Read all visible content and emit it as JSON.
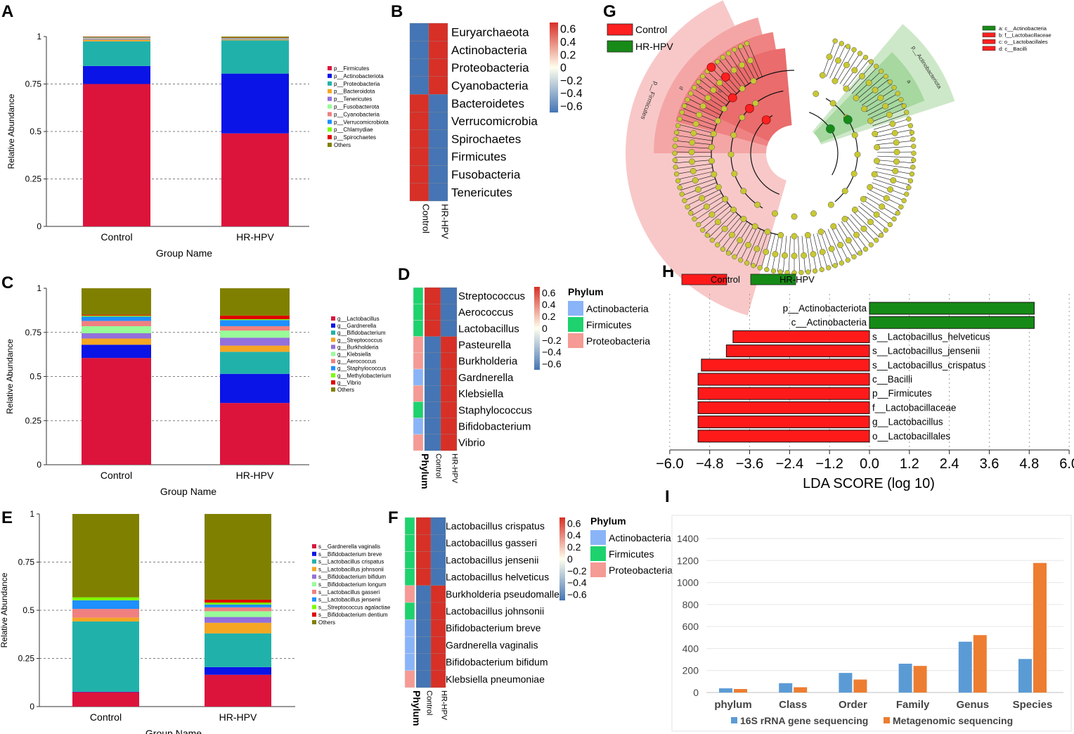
{
  "panels": {
    "A": {
      "label": "A",
      "chart_data": {
        "type": "bar",
        "stacked": true,
        "categories": [
          "Control",
          "HR-HPV"
        ],
        "xlabel": "Group Name",
        "ylabel": "Relative Abundance",
        "ylim": [
          0,
          1
        ],
        "yticks": [
          "0",
          "0.25",
          "0.5",
          "0.75",
          "1"
        ],
        "series": [
          {
            "name": "p__Firmicutes",
            "color": "#dc143c",
            "values": [
              0.75,
              0.49
            ]
          },
          {
            "name": "p__Actinobacteriota",
            "color": "#0a14e6",
            "values": [
              0.095,
              0.315
            ]
          },
          {
            "name": "p__Proteobacteria",
            "color": "#20b2aa",
            "values": [
              0.13,
              0.175
            ]
          },
          {
            "name": "p__Bacteroidota",
            "color": "#f5a623",
            "values": [
              0.008,
              0.004
            ]
          },
          {
            "name": "p__Tenericutes",
            "color": "#9370db",
            "values": [
              0.004,
              0.003
            ]
          },
          {
            "name": "p__Fusobacterota",
            "color": "#98fb98",
            "values": [
              0.003,
              0.002
            ]
          },
          {
            "name": "p__Cyanobacteria",
            "color": "#f08080",
            "values": [
              0.003,
              0.002
            ]
          },
          {
            "name": "p__Verrucomicrobiota",
            "color": "#1e90ff",
            "values": [
              0.002,
              0.002
            ]
          },
          {
            "name": "p__Chlamydiae",
            "color": "#7cfc00",
            "values": [
              0.002,
              0.001
            ]
          },
          {
            "name": "p__Spirochaetes",
            "color": "#e00000",
            "values": [
              0.001,
              0.001
            ]
          },
          {
            "name": "Others",
            "color": "#808000",
            "values": [
              0.002,
              0.005
            ]
          }
        ]
      }
    },
    "B": {
      "label": "B",
      "chart_data": {
        "type": "heatmap",
        "rows": [
          "Euryarchaeota",
          "Actinobacteria",
          "Proteobacteria",
          "Cyanobacteria",
          "Bacteroidetes",
          "Verrucomicrobia",
          "Spirochaetes",
          "Firmicutes",
          "Fusobacteria",
          "Tenericutes"
        ],
        "columns": [
          "Control",
          "HR-HPV"
        ],
        "values": [
          [
            -0.7,
            0.7
          ],
          [
            -0.7,
            0.7
          ],
          [
            -0.7,
            0.7
          ],
          [
            -0.7,
            0.7
          ],
          [
            0.7,
            -0.7
          ],
          [
            0.7,
            -0.7
          ],
          [
            0.7,
            -0.7
          ],
          [
            0.7,
            -0.7
          ],
          [
            0.7,
            -0.7
          ],
          [
            0.7,
            -0.7
          ]
        ],
        "colorbar_ticks": [
          "0.6",
          "0.4",
          "0.2",
          "0",
          "−0.2",
          "−0.4",
          "−0.6"
        ]
      }
    },
    "C": {
      "label": "C",
      "chart_data": {
        "type": "bar",
        "stacked": true,
        "categories": [
          "Control",
          "HR-HPV"
        ],
        "xlabel": "Group Name",
        "ylabel": "Relative Abundance",
        "ylim": [
          0,
          1
        ],
        "yticks": [
          "0",
          "0.25",
          "0.5",
          "0.75",
          "1"
        ],
        "series": [
          {
            "name": "g__Lactobacillus",
            "color": "#dc143c",
            "values": [
              0.605,
              0.35
            ]
          },
          {
            "name": "g__Gardnerella",
            "color": "#0a14e6",
            "values": [
              0.075,
              0.165
            ]
          },
          {
            "name": "g__Bifidobacterium",
            "color": "#20b2aa",
            "values": [
              0.0,
              0.125
            ]
          },
          {
            "name": "g__Streptococcus",
            "color": "#f5a623",
            "values": [
              0.035,
              0.035
            ]
          },
          {
            "name": "g__Burkholderia",
            "color": "#9370db",
            "values": [
              0.03,
              0.045
            ]
          },
          {
            "name": "g__Klebsiella",
            "color": "#98fb98",
            "values": [
              0.04,
              0.04
            ]
          },
          {
            "name": "g__Aerococcus",
            "color": "#f08080",
            "values": [
              0.03,
              0.025
            ]
          },
          {
            "name": "g__Staphylococcus",
            "color": "#1e90ff",
            "values": [
              0.025,
              0.035
            ]
          },
          {
            "name": "g__Methylobacterium",
            "color": "#7cfc00",
            "values": [
              0.005,
              0.005
            ]
          },
          {
            "name": "g__Vibrio",
            "color": "#e00000",
            "values": [
              0.005,
              0.02
            ]
          },
          {
            "name": "Others",
            "color": "#808000",
            "values": [
              0.15,
              0.155
            ]
          }
        ]
      }
    },
    "D": {
      "label": "D",
      "chart_data": {
        "type": "heatmap",
        "rows": [
          "Streptococcus",
          "Aerococcus",
          "Lactobacillus",
          "Pasteurella",
          "Burkholderia",
          "Gardnerella",
          "Klebsiella",
          "Staphylococcus",
          "Bifidobacterium",
          "Vibrio"
        ],
        "row_phylum": [
          "Firmicutes",
          "Firmicutes",
          "Firmicutes",
          "Proteobacteria",
          "Proteobacteria",
          "Actinobacteria",
          "Proteobacteria",
          "Firmicutes",
          "Actinobacteria",
          "Proteobacteria"
        ],
        "columns": [
          "Phylum",
          "Control",
          "HR-HPV"
        ],
        "values": [
          [
            0.7,
            -0.7
          ],
          [
            0.7,
            -0.7
          ],
          [
            0.7,
            -0.7
          ],
          [
            -0.7,
            0.7
          ],
          [
            -0.7,
            0.7
          ],
          [
            -0.7,
            0.7
          ],
          [
            -0.7,
            0.7
          ],
          [
            -0.7,
            0.7
          ],
          [
            -0.7,
            0.7
          ],
          [
            -0.7,
            0.7
          ]
        ],
        "colorbar_ticks": [
          "0.6",
          "0.4",
          "0.2",
          "0",
          "−0.2",
          "−0.4",
          "−0.6"
        ],
        "legend_title": "Phylum",
        "legend": [
          {
            "name": "Actinobacteria",
            "color": "#8ab4f8"
          },
          {
            "name": "Firmicutes",
            "color": "#1ed26e"
          },
          {
            "name": "Proteobacteria",
            "color": "#f59a94"
          }
        ]
      }
    },
    "E": {
      "label": "E",
      "chart_data": {
        "type": "bar",
        "stacked": true,
        "categories": [
          "Control",
          "HR-HPV"
        ],
        "xlabel": "Group Name",
        "ylabel": "Relative Abundance",
        "ylim": [
          0,
          1
        ],
        "yticks": [
          "0",
          "0.25",
          "0.5",
          "0.75",
          "1"
        ],
        "series": [
          {
            "name": "s__Gardnerella vaginalis",
            "color": "#dc143c",
            "values": [
              0.075,
              0.165
            ]
          },
          {
            "name": "s__Bifidobacterium breve",
            "color": "#0a14e6",
            "values": [
              0.002,
              0.04
            ]
          },
          {
            "name": "s__Lactobacillus crispatus",
            "color": "#20b2aa",
            "values": [
              0.365,
              0.175
            ]
          },
          {
            "name": "s__Lactobacillus johnsonii",
            "color": "#f5a623",
            "values": [
              0.02,
              0.055
            ]
          },
          {
            "name": "s__Bifidobacterium bifidum",
            "color": "#9370db",
            "values": [
              0.0,
              0.03
            ]
          },
          {
            "name": "s__Bifidobacterium longum",
            "color": "#98fb98",
            "values": [
              0.0,
              0.03
            ]
          },
          {
            "name": "s__Lactobacillus gasseri",
            "color": "#f08080",
            "values": [
              0.045,
              0.02
            ]
          },
          {
            "name": "s__Lactobacillus jensenii",
            "color": "#1e90ff",
            "values": [
              0.045,
              0.015
            ]
          },
          {
            "name": "s__Streptococcus agalactiae",
            "color": "#7cfc00",
            "values": [
              0.015,
              0.01
            ]
          },
          {
            "name": "s__Bifidobacterium dentium",
            "color": "#e00000",
            "values": [
              0.0,
              0.015
            ]
          },
          {
            "name": "Others",
            "color": "#808000",
            "values": [
              0.433,
              0.445
            ]
          }
        ]
      }
    },
    "F": {
      "label": "F",
      "chart_data": {
        "type": "heatmap",
        "rows": [
          "Lactobacillus crispatus",
          "Lactobacillus gasseri",
          "Lactobacillus jensenii",
          "Lactobacillus helveticus",
          "Burkholderia pseudomallei",
          "Lactobacillus johnsonii",
          "Bifidobacterium breve",
          "Gardnerella vaginalis",
          "Bifidobacterium bifidum",
          "Klebsiella pneumoniae"
        ],
        "row_phylum": [
          "Firmicutes",
          "Firmicutes",
          "Firmicutes",
          "Firmicutes",
          "Proteobacteria",
          "Firmicutes",
          "Actinobacteria",
          "Actinobacteria",
          "Actinobacteria",
          "Proteobacteria"
        ],
        "columns": [
          "Phylum",
          "Control",
          "HR-HPV"
        ],
        "values": [
          [
            0.7,
            -0.7
          ],
          [
            0.7,
            -0.7
          ],
          [
            0.7,
            -0.7
          ],
          [
            0.7,
            -0.7
          ],
          [
            -0.7,
            0.7
          ],
          [
            -0.7,
            0.7
          ],
          [
            -0.7,
            0.7
          ],
          [
            -0.7,
            0.7
          ],
          [
            -0.7,
            0.7
          ],
          [
            -0.7,
            0.7
          ]
        ],
        "colorbar_ticks": [
          "0.6",
          "0.4",
          "0.2",
          "0",
          "−0.2",
          "−0.4",
          "−0.6"
        ],
        "legend_title": "Phylum",
        "legend": [
          {
            "name": "Actinobacteria",
            "color": "#8ab4f8"
          },
          {
            "name": "Firmicutes",
            "color": "#1ed26e"
          },
          {
            "name": "Proteobacteria",
            "color": "#f59a94"
          }
        ]
      }
    },
    "G": {
      "label": "G",
      "chart_data": {
        "type": "other",
        "description_kind": "cladogram",
        "legend": [
          {
            "name": "Control",
            "color": "#ff2020"
          },
          {
            "name": "HR-HPV",
            "color": "#188a18"
          }
        ],
        "key": [
          {
            "text": "a: c__Actinobacteria",
            "color": "#188a18"
          },
          {
            "text": "b: f__Lactobacillaceae",
            "color": "#ff2020"
          },
          {
            "text": "c: o__Lactobacillales",
            "color": "#ff2020"
          },
          {
            "text": "d: c__Bacilli",
            "color": "#ff2020"
          }
        ],
        "sector_labels": [
          "p__Firmicutes",
          "p__Actinobacteriota",
          "d",
          "c",
          "b",
          "a"
        ]
      }
    },
    "H": {
      "label": "H",
      "chart_data": {
        "type": "bar",
        "orientation": "horizontal",
        "xlabel": "LDA SCORE (log 10)",
        "xlim": [
          -6.0,
          6.0
        ],
        "xticks": [
          "−6.0",
          "−4.8",
          "−3.6",
          "−2.4",
          "−1.2",
          "0.0",
          "1.2",
          "2.4",
          "3.6",
          "4.8",
          "6.0"
        ],
        "legend": [
          {
            "name": "Control",
            "color": "#ff1a1a"
          },
          {
            "name": "HR-HPV",
            "color": "#168a16"
          }
        ],
        "categories": [
          "p__Actinobacteriota",
          "c__Actinobacteria",
          "s__Lactobacillus_helveticus",
          "s__Lactobacillus_jensenii",
          "s__Lactobacillus_crispatus",
          "c__Bacilli",
          "p__Firmicutes",
          "f__Lactobacillaceae",
          "g__Lactobacillus",
          "o__Lactobacillales"
        ],
        "values": [
          4.95,
          4.95,
          -4.1,
          -4.3,
          -5.05,
          -5.15,
          -5.15,
          -5.15,
          -5.15,
          -5.15
        ],
        "groups": [
          "HR-HPV",
          "HR-HPV",
          "Control",
          "Control",
          "Control",
          "Control",
          "Control",
          "Control",
          "Control",
          "Control"
        ]
      }
    },
    "I": {
      "label": "I",
      "chart_data": {
        "type": "bar",
        "categories": [
          "phylum",
          "Class",
          "Order",
          "Family",
          "Genus",
          "Species"
        ],
        "ylim": [
          0,
          1400
        ],
        "yticks": [
          "0",
          "200",
          "400",
          "600",
          "800",
          "1000",
          "1200",
          "1400"
        ],
        "series": [
          {
            "name": "16S rRNA gene sequencing",
            "color": "#5b9bd5",
            "values": [
              38,
              85,
              178,
              262,
              462,
              305
            ]
          },
          {
            "name": "Metagenomic sequencing",
            "color": "#ed7d31",
            "values": [
              32,
              48,
              118,
              242,
              522,
              1178
            ]
          }
        ]
      }
    }
  }
}
